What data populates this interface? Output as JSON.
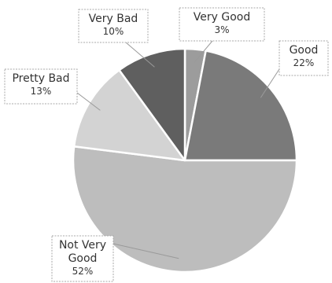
{
  "chart_data": {
    "type": "pie",
    "start_angle_deg": 0,
    "direction": "clockwise",
    "legend": "none",
    "slices": [
      {
        "label": "Very Good",
        "value": 3,
        "display": "3%",
        "color": "#9c9c9c"
      },
      {
        "label": "Good",
        "value": 22,
        "display": "22%",
        "color": "#7a7a7a"
      },
      {
        "label": "Not Very Good",
        "label_lines": [
          "Not Very",
          "Good"
        ],
        "value": 52,
        "display": "52%",
        "color": "#bdbdbd"
      },
      {
        "label": "Pretty Bad",
        "value": 13,
        "display": "13%",
        "color": "#d3d3d3"
      },
      {
        "label": "Very Bad",
        "value": 10,
        "display": "10%",
        "color": "#5f5f5f"
      }
    ]
  }
}
